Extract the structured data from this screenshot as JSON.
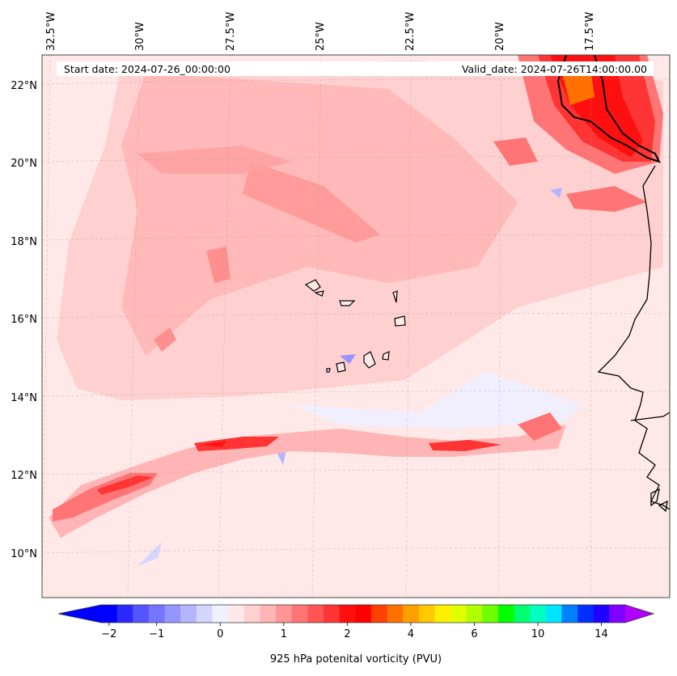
{
  "header": {
    "start_date": "Start date: 2024-07-26_00:00:00",
    "valid_date": "Valid_date: 2024-07-26T14:00:00.00"
  },
  "lon_labels": [
    "32.5°W",
    "30°W",
    "27.5°W",
    "25°W",
    "22.5°W",
    "20°W",
    "17.5°W"
  ],
  "lat_labels": [
    "22°N",
    "20°N",
    "18°N",
    "16°N",
    "14°N",
    "12°N",
    "10°N"
  ],
  "colorbar": {
    "label": "925 hPa potenital vorticity (PVU)",
    "tick_labels": [
      "−2",
      "−1",
      "0",
      "1",
      "2",
      "4",
      "6",
      "10",
      "14"
    ],
    "colors": [
      "#0000ff",
      "#2a2aff",
      "#5555ff",
      "#7575ff",
      "#9595ff",
      "#b5b5ff",
      "#d5d5ff",
      "#f0f0ff",
      "#ffe8e8",
      "#ffd0d0",
      "#ffb5b5",
      "#ff9595",
      "#ff7575",
      "#ff5555",
      "#ff3535",
      "#ff1010",
      "#ff0000",
      "#ff4000",
      "#ff7000",
      "#ffa000",
      "#ffc800",
      "#fff000",
      "#e0ff00",
      "#b0ff00",
      "#70ff00",
      "#00ff00",
      "#00ff70",
      "#00ffc0",
      "#00e5ff",
      "#0080ff",
      "#0030ff",
      "#2000ff",
      "#8000ff"
    ],
    "under_color": "#0000ff",
    "over_color": "#b000ff"
  },
  "map": {
    "background": "#ffe8e8",
    "coastline_color": "#000000"
  }
}
